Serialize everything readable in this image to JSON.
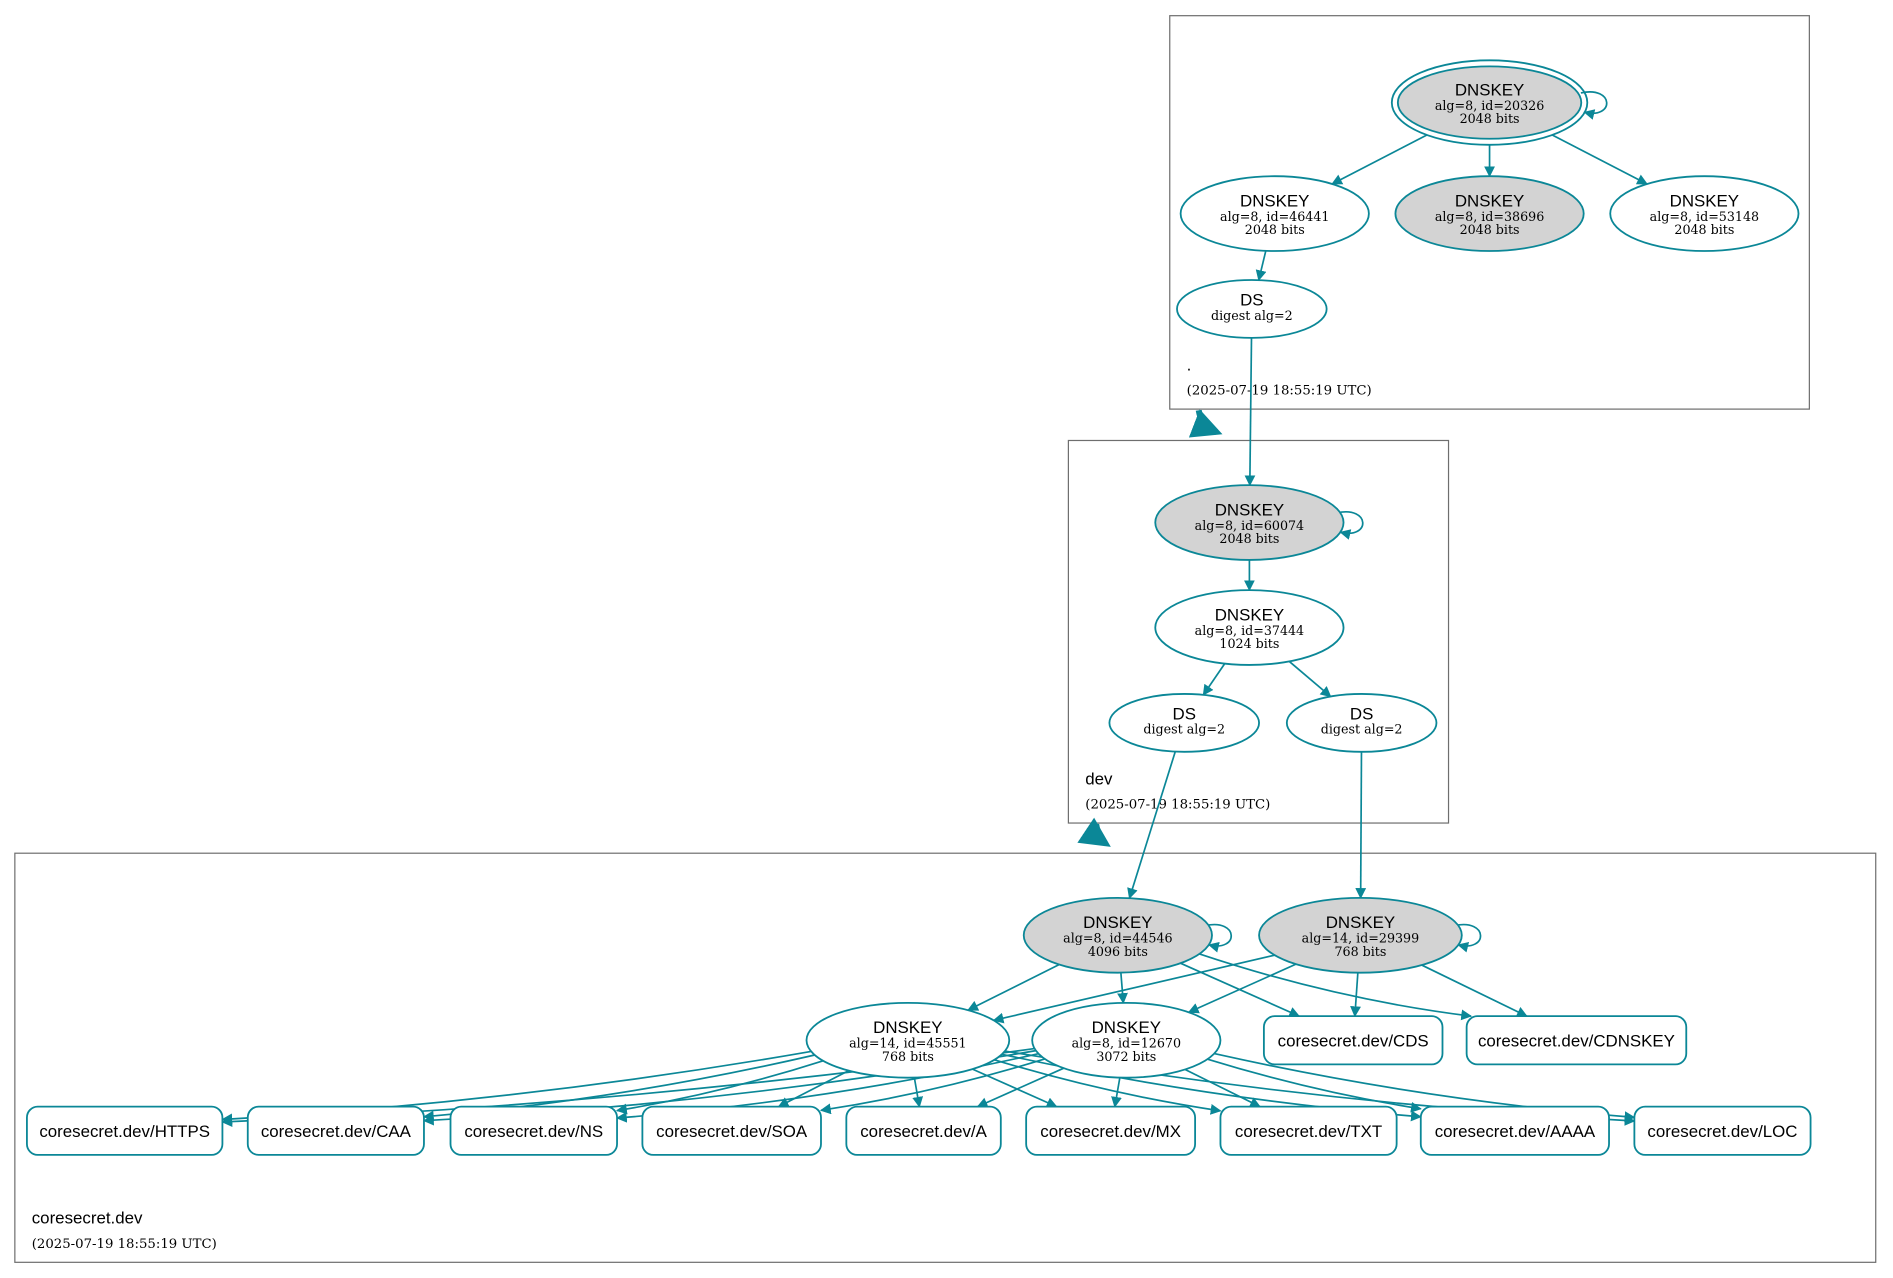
{
  "colors": {
    "edge": "#0b8797",
    "signed_fill": "#d3d3d3",
    "cluster_border": "#6e6e6e"
  },
  "clusters": [
    {
      "id": "root",
      "name": ".",
      "timestamp": "(2025-07-19 18:55:19 UTC)"
    },
    {
      "id": "dev",
      "name": "dev",
      "timestamp": "(2025-07-19 18:55:19 UTC)"
    },
    {
      "id": "cs",
      "name": "coresecret.dev",
      "timestamp": "(2025-07-19 18:55:19 UTC)"
    }
  ],
  "nodes": [
    {
      "id": "k20326",
      "kind": "ellipse",
      "sep": true,
      "trust_anchor": true,
      "title": "DNSKEY",
      "l1": "alg=8, id=20326",
      "l2": "2048 bits"
    },
    {
      "id": "k46441",
      "kind": "ellipse",
      "sep": false,
      "title": "DNSKEY",
      "l1": "alg=8, id=46441",
      "l2": "2048 bits"
    },
    {
      "id": "k38696",
      "kind": "ellipse",
      "sep": true,
      "title": "DNSKEY",
      "l1": "alg=8, id=38696",
      "l2": "2048 bits"
    },
    {
      "id": "k53148",
      "kind": "ellipse",
      "sep": false,
      "title": "DNSKEY",
      "l1": "alg=8, id=53148",
      "l2": "2048 bits"
    },
    {
      "id": "ds1",
      "kind": "ellipse",
      "sep": false,
      "title": "DS",
      "l1": "digest alg=2"
    },
    {
      "id": "k60074",
      "kind": "ellipse",
      "sep": true,
      "title": "DNSKEY",
      "l1": "alg=8, id=60074",
      "l2": "2048 bits"
    },
    {
      "id": "k37444",
      "kind": "ellipse",
      "sep": false,
      "title": "DNSKEY",
      "l1": "alg=8, id=37444",
      "l2": "1024 bits"
    },
    {
      "id": "ds2",
      "kind": "ellipse",
      "sep": false,
      "title": "DS",
      "l1": "digest alg=2"
    },
    {
      "id": "ds3",
      "kind": "ellipse",
      "sep": false,
      "title": "DS",
      "l1": "digest alg=2"
    },
    {
      "id": "k44546",
      "kind": "ellipse",
      "sep": true,
      "title": "DNSKEY",
      "l1": "alg=8, id=44546",
      "l2": "4096 bits"
    },
    {
      "id": "k29399",
      "kind": "ellipse",
      "sep": true,
      "title": "DNSKEY",
      "l1": "alg=14, id=29399",
      "l2": "768 bits"
    },
    {
      "id": "k45551",
      "kind": "ellipse",
      "sep": false,
      "title": "DNSKEY",
      "l1": "alg=14, id=45551",
      "l2": "768 bits"
    },
    {
      "id": "k12670",
      "kind": "ellipse",
      "sep": false,
      "title": "DNSKEY",
      "l1": "alg=8, id=12670",
      "l2": "3072 bits"
    },
    {
      "id": "cds",
      "kind": "rrset",
      "title": "coresecret.dev/CDS"
    },
    {
      "id": "cdnskey",
      "kind": "rrset",
      "title": "coresecret.dev/CDNSKEY"
    },
    {
      "id": "https",
      "kind": "rrset",
      "title": "coresecret.dev/HTTPS"
    },
    {
      "id": "caa",
      "kind": "rrset",
      "title": "coresecret.dev/CAA"
    },
    {
      "id": "ns",
      "kind": "rrset",
      "title": "coresecret.dev/NS"
    },
    {
      "id": "soa",
      "kind": "rrset",
      "title": "coresecret.dev/SOA"
    },
    {
      "id": "a",
      "kind": "rrset",
      "title": "coresecret.dev/A"
    },
    {
      "id": "mx",
      "kind": "rrset",
      "title": "coresecret.dev/MX"
    },
    {
      "id": "txt",
      "kind": "rrset",
      "title": "coresecret.dev/TXT"
    },
    {
      "id": "aaaa",
      "kind": "rrset",
      "title": "coresecret.dev/AAAA"
    },
    {
      "id": "loc",
      "kind": "rrset",
      "title": "coresecret.dev/LOC"
    }
  ],
  "edges": [
    [
      "k20326",
      "k20326"
    ],
    [
      "k20326",
      "k46441"
    ],
    [
      "k20326",
      "k38696"
    ],
    [
      "k20326",
      "k53148"
    ],
    [
      "k46441",
      "ds1"
    ],
    [
      "ds1",
      "k60074"
    ],
    [
      "k60074",
      "k60074"
    ],
    [
      "k60074",
      "k37444"
    ],
    [
      "k37444",
      "ds2"
    ],
    [
      "k37444",
      "ds3"
    ],
    [
      "ds2",
      "k44546"
    ],
    [
      "ds3",
      "k29399"
    ],
    [
      "k44546",
      "k44546"
    ],
    [
      "k44546",
      "k45551"
    ],
    [
      "k44546",
      "k12670"
    ],
    [
      "k44546",
      "cds"
    ],
    [
      "k44546",
      "cdnskey"
    ],
    [
      "k29399",
      "k29399"
    ],
    [
      "k29399",
      "k45551"
    ],
    [
      "k29399",
      "k12670"
    ],
    [
      "k29399",
      "cds"
    ],
    [
      "k29399",
      "cdnskey"
    ],
    [
      "k45551",
      "https"
    ],
    [
      "k45551",
      "caa"
    ],
    [
      "k45551",
      "ns"
    ],
    [
      "k45551",
      "soa"
    ],
    [
      "k45551",
      "a"
    ],
    [
      "k45551",
      "mx"
    ],
    [
      "k45551",
      "txt"
    ],
    [
      "k45551",
      "aaaa"
    ],
    [
      "k45551",
      "loc"
    ],
    [
      "k12670",
      "https"
    ],
    [
      "k12670",
      "caa"
    ],
    [
      "k12670",
      "ns"
    ],
    [
      "k12670",
      "soa"
    ],
    [
      "k12670",
      "a"
    ],
    [
      "k12670",
      "mx"
    ],
    [
      "k12670",
      "txt"
    ],
    [
      "k12670",
      "aaaa"
    ],
    [
      "k12670",
      "loc"
    ]
  ],
  "delegations": [
    [
      "root",
      "dev"
    ],
    [
      "dev",
      "cs"
    ]
  ]
}
